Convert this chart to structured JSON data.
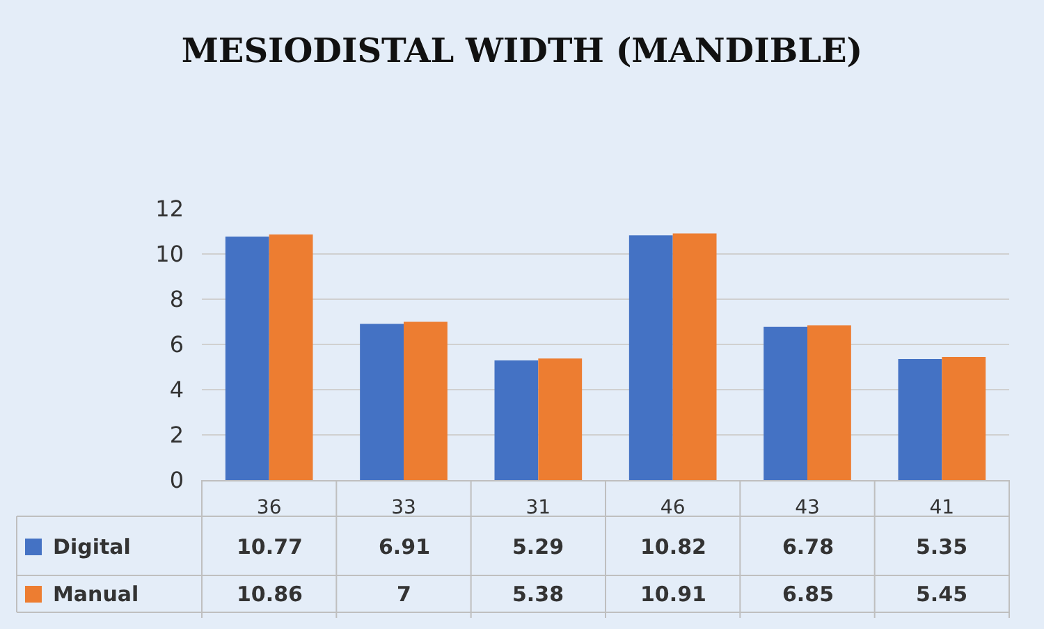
{
  "chart_data": {
    "type": "bar",
    "title": "MESIODISTAL WIDTH (MANDIBLE)",
    "categories": [
      "36",
      "33",
      "31",
      "46",
      "43",
      "41"
    ],
    "series": [
      {
        "name": "Digital",
        "color": "#4472c4",
        "values": [
          10.77,
          6.91,
          5.29,
          10.82,
          6.78,
          5.35
        ]
      },
      {
        "name": "Manual",
        "color": "#ed7d31",
        "values": [
          10.86,
          7,
          5.38,
          10.91,
          6.85,
          5.45
        ]
      }
    ],
    "ylim": [
      0,
      12
    ],
    "yticks": [
      0,
      2,
      4,
      6,
      8,
      10,
      12
    ],
    "grid": "y",
    "data_labels": true,
    "legend": "bottom left"
  }
}
